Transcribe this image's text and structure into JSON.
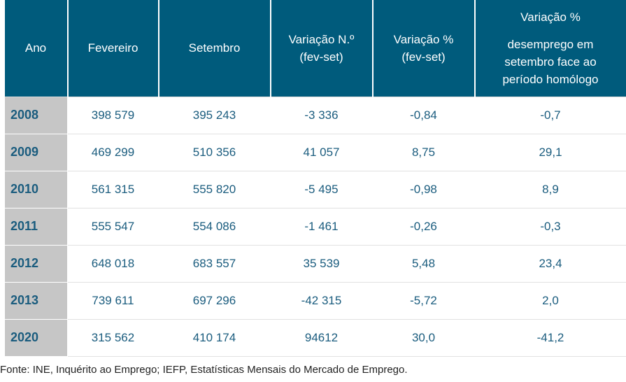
{
  "table": {
    "headers": [
      {
        "lines": [
          "Ano"
        ]
      },
      {
        "lines": [
          "Fevereiro"
        ]
      },
      {
        "lines": [
          "Setembro"
        ]
      },
      {
        "lines": [
          "Variação N.º",
          "(fev-set)"
        ]
      },
      {
        "lines": [
          "Variação %",
          "(fev-set)"
        ]
      },
      {
        "lines": [
          "Variação %",
          "",
          "desemprego em",
          "setembro face ao",
          "período homólogo"
        ]
      }
    ],
    "rows": [
      {
        "ano": "2008",
        "fevereiro": "398 579",
        "setembro": "395 243",
        "var_n": "-3 336",
        "var_pct": "-0,84",
        "var_homologo": "-0,7"
      },
      {
        "ano": "2009",
        "fevereiro": "469 299",
        "setembro": "510 356",
        "var_n": "41 057",
        "var_pct": "8,75",
        "var_homologo": "29,1"
      },
      {
        "ano": "2010",
        "fevereiro": "561 315",
        "setembro": "555 820",
        "var_n": "-5 495",
        "var_pct": "-0,98",
        "var_homologo": "8,9"
      },
      {
        "ano": "2011",
        "fevereiro": "555 547",
        "setembro": "554 086",
        "var_n": "-1 461",
        "var_pct": "-0,26",
        "var_homologo": "-0,3"
      },
      {
        "ano": "2012",
        "fevereiro": "648 018",
        "setembro": "683 557",
        "var_n": "35 539",
        "var_pct": "5,48",
        "var_homologo": "23,4"
      },
      {
        "ano": "2013",
        "fevereiro": "739 611",
        "setembro": "697 296",
        "var_n": "-42 315",
        "var_pct": "-5,72",
        "var_homologo": "2,0"
      },
      {
        "ano": "2020",
        "fevereiro": "315 562",
        "setembro": "410 174",
        "var_n": "94612",
        "var_pct": "30,0",
        "var_homologo": "-41,2"
      }
    ]
  },
  "source": "Fonte: INE, Inquérito ao Emprego; IEFP, Estatísticas Mensais do Mercado de Emprego.",
  "colors": {
    "header_bg": "#005b7c",
    "header_text": "#ffffff",
    "year_bg": "#c6c6c6",
    "cell_text": "#1a5c7e"
  }
}
